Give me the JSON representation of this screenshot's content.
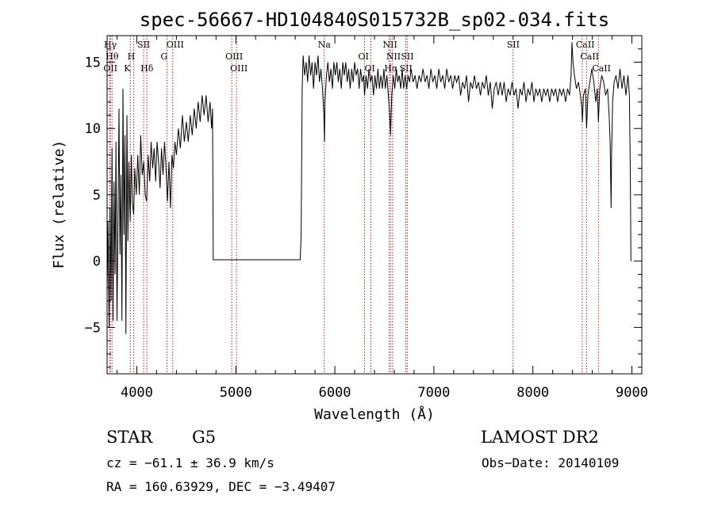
{
  "chart_data": {
    "type": "line",
    "title": "spec-56667-HD104840S015732B_sp02-034.fits",
    "xlabel": "Wavelength (Å)",
    "ylabel": "Flux (relative)",
    "xlim": [
      3700,
      9100
    ],
    "ylim": [
      -8.5,
      17
    ],
    "xticks": [
      4000,
      5000,
      6000,
      7000,
      8000,
      9000
    ],
    "yticks": [
      -5,
      0,
      5,
      10,
      15
    ],
    "grid": false,
    "series": [
      {
        "points": [
          [
            3700,
            -2.5
          ],
          [
            3710,
            3.0
          ],
          [
            3720,
            -5.0
          ],
          [
            3730,
            4.0
          ],
          [
            3740,
            -3.0
          ],
          [
            3750,
            8.5
          ],
          [
            3760,
            -4.5
          ],
          [
            3770,
            6.0
          ],
          [
            3780,
            -1.0
          ],
          [
            3790,
            9.0
          ],
          [
            3800,
            -4.5
          ],
          [
            3810,
            3.0
          ],
          [
            3820,
            11.5
          ],
          [
            3830,
            0.5
          ],
          [
            3840,
            6.5
          ],
          [
            3850,
            -4.5
          ],
          [
            3860,
            13.0
          ],
          [
            3870,
            2.0
          ],
          [
            3880,
            9.5
          ],
          [
            3890,
            -5.5
          ],
          [
            3900,
            11.0
          ],
          [
            3910,
            1.5
          ],
          [
            3920,
            7.5
          ],
          [
            3933,
            3.0
          ],
          [
            3945,
            8.0
          ],
          [
            3955,
            4.5
          ],
          [
            3968,
            3.5
          ],
          [
            3980,
            7.0
          ],
          [
            3995,
            5.0
          ],
          [
            4010,
            8.0
          ],
          [
            4025,
            5.0
          ],
          [
            4040,
            9.5
          ],
          [
            4055,
            6.5
          ],
          [
            4070,
            7.5
          ],
          [
            4085,
            5.0
          ],
          [
            4100,
            4.5
          ],
          [
            4115,
            8.0
          ],
          [
            4130,
            6.0
          ],
          [
            4145,
            9.0
          ],
          [
            4160,
            7.0
          ],
          [
            4175,
            8.5
          ],
          [
            4190,
            6.0
          ],
          [
            4205,
            9.0
          ],
          [
            4220,
            7.5
          ],
          [
            4235,
            5.5
          ],
          [
            4250,
            8.5
          ],
          [
            4265,
            6.5
          ],
          [
            4280,
            9.0
          ],
          [
            4295,
            7.0
          ],
          [
            4310,
            4.5
          ],
          [
            4325,
            7.5
          ],
          [
            4340,
            4.0
          ],
          [
            4355,
            8.0
          ],
          [
            4370,
            7.0
          ],
          [
            4385,
            9.0
          ],
          [
            4400,
            8.0
          ],
          [
            4420,
            10.0
          ],
          [
            4440,
            8.5
          ],
          [
            4460,
            11.0
          ],
          [
            4480,
            9.0
          ],
          [
            4500,
            10.5
          ],
          [
            4520,
            9.0
          ],
          [
            4540,
            11.0
          ],
          [
            4560,
            9.5
          ],
          [
            4580,
            11.5
          ],
          [
            4600,
            10.0
          ],
          [
            4620,
            12.0
          ],
          [
            4640,
            10.5
          ],
          [
            4660,
            12.5
          ],
          [
            4680,
            11.0
          ],
          [
            4700,
            12.5
          ],
          [
            4720,
            10.5
          ],
          [
            4740,
            12.0
          ],
          [
            4755,
            10.0
          ],
          [
            4765,
            11.5
          ],
          [
            4772,
            0.1
          ],
          [
            5650,
            0.1
          ],
          [
            5660,
            2.0
          ],
          [
            5665,
            8.0
          ],
          [
            5670,
            13.0
          ],
          [
            5680,
            15.5
          ],
          [
            5695,
            14.0
          ],
          [
            5710,
            15.0
          ],
          [
            5725,
            13.5
          ],
          [
            5740,
            15.5
          ],
          [
            5755,
            14.0
          ],
          [
            5770,
            15.0
          ],
          [
            5785,
            13.0
          ],
          [
            5800,
            15.0
          ],
          [
            5815,
            14.0
          ],
          [
            5830,
            15.5
          ],
          [
            5845,
            13.5
          ],
          [
            5860,
            14.5
          ],
          [
            5875,
            13.0
          ],
          [
            5890,
            11.0
          ],
          [
            5895,
            9.0
          ],
          [
            5900,
            12.0
          ],
          [
            5915,
            14.0
          ],
          [
            5930,
            15.0
          ],
          [
            5945,
            13.5
          ],
          [
            5960,
            14.5
          ],
          [
            5975,
            13.0
          ],
          [
            5990,
            15.0
          ],
          [
            6005,
            14.0
          ],
          [
            6020,
            15.0
          ],
          [
            6035,
            13.5
          ],
          [
            6050,
            14.5
          ],
          [
            6065,
            13.0
          ],
          [
            6080,
            15.0
          ],
          [
            6095,
            14.0
          ],
          [
            6110,
            15.0
          ],
          [
            6125,
            13.5
          ],
          [
            6140,
            14.5
          ],
          [
            6155,
            13.0
          ],
          [
            6170,
            14.5
          ],
          [
            6185,
            13.5
          ],
          [
            6200,
            15.0
          ],
          [
            6215,
            14.0
          ],
          [
            6230,
            14.5
          ],
          [
            6245,
            13.0
          ],
          [
            6260,
            14.5
          ],
          [
            6275,
            13.5
          ],
          [
            6290,
            14.0
          ],
          [
            6300,
            12.5
          ],
          [
            6315,
            14.0
          ],
          [
            6330,
            13.0
          ],
          [
            6345,
            14.5
          ],
          [
            6360,
            13.5
          ],
          [
            6375,
            14.0
          ],
          [
            6390,
            12.5
          ],
          [
            6405,
            14.0
          ],
          [
            6420,
            13.0
          ],
          [
            6435,
            14.5
          ],
          [
            6450,
            13.0
          ],
          [
            6465,
            14.0
          ],
          [
            6480,
            13.0
          ],
          [
            6495,
            14.5
          ],
          [
            6510,
            13.0
          ],
          [
            6525,
            14.0
          ],
          [
            6540,
            12.5
          ],
          [
            6555,
            11.0
          ],
          [
            6563,
            9.5
          ],
          [
            6575,
            12.5
          ],
          [
            6590,
            14.0
          ],
          [
            6605,
            13.0
          ],
          [
            6620,
            14.5
          ],
          [
            6635,
            13.5
          ],
          [
            6650,
            14.0
          ],
          [
            6665,
            13.0
          ],
          [
            6680,
            14.5
          ],
          [
            6695,
            13.0
          ],
          [
            6710,
            14.0
          ],
          [
            6725,
            13.0
          ],
          [
            6740,
            14.0
          ],
          [
            6755,
            13.5
          ],
          [
            6770,
            14.5
          ],
          [
            6790,
            13.5
          ],
          [
            6810,
            14.0
          ],
          [
            6830,
            13.0
          ],
          [
            6850,
            14.0
          ],
          [
            6870,
            13.5
          ],
          [
            6890,
            14.5
          ],
          [
            6910,
            13.5
          ],
          [
            6930,
            14.0
          ],
          [
            6950,
            13.0
          ],
          [
            6970,
            14.5
          ],
          [
            6990,
            13.5
          ],
          [
            7010,
            14.0
          ],
          [
            7030,
            13.0
          ],
          [
            7050,
            14.5
          ],
          [
            7070,
            13.5
          ],
          [
            7090,
            14.0
          ],
          [
            7110,
            13.0
          ],
          [
            7130,
            14.5
          ],
          [
            7150,
            13.5
          ],
          [
            7170,
            14.0
          ],
          [
            7190,
            13.0
          ],
          [
            7210,
            14.0
          ],
          [
            7230,
            13.5
          ],
          [
            7250,
            14.0
          ],
          [
            7270,
            12.5
          ],
          [
            7290,
            13.5
          ],
          [
            7310,
            13.0
          ],
          [
            7330,
            14.0
          ],
          [
            7350,
            12.0
          ],
          [
            7370,
            13.5
          ],
          [
            7390,
            13.0
          ],
          [
            7410,
            14.0
          ],
          [
            7430,
            13.0
          ],
          [
            7450,
            13.5
          ],
          [
            7470,
            12.5
          ],
          [
            7490,
            13.5
          ],
          [
            7510,
            13.0
          ],
          [
            7530,
            14.0
          ],
          [
            7550,
            12.5
          ],
          [
            7570,
            13.5
          ],
          [
            7590,
            11.5
          ],
          [
            7610,
            13.0
          ],
          [
            7630,
            13.5
          ],
          [
            7650,
            12.5
          ],
          [
            7670,
            13.5
          ],
          [
            7690,
            12.5
          ],
          [
            7710,
            13.5
          ],
          [
            7730,
            12.0
          ],
          [
            7750,
            13.0
          ],
          [
            7770,
            12.5
          ],
          [
            7790,
            13.5
          ],
          [
            7810,
            12.5
          ],
          [
            7830,
            13.0
          ],
          [
            7850,
            11.5
          ],
          [
            7870,
            13.0
          ],
          [
            7890,
            12.5
          ],
          [
            7910,
            13.5
          ],
          [
            7930,
            12.0
          ],
          [
            7950,
            13.0
          ],
          [
            7970,
            12.5
          ],
          [
            7990,
            13.5
          ],
          [
            8010,
            12.0
          ],
          [
            8030,
            13.0
          ],
          [
            8050,
            12.5
          ],
          [
            8070,
            13.0
          ],
          [
            8090,
            12.0
          ],
          [
            8110,
            13.0
          ],
          [
            8130,
            12.5
          ],
          [
            8150,
            13.0
          ],
          [
            8170,
            12.0
          ],
          [
            8190,
            13.0
          ],
          [
            8210,
            12.5
          ],
          [
            8230,
            13.0
          ],
          [
            8250,
            12.0
          ],
          [
            8270,
            13.0
          ],
          [
            8290,
            12.5
          ],
          [
            8310,
            13.0
          ],
          [
            8330,
            12.0
          ],
          [
            8350,
            13.0
          ],
          [
            8370,
            12.5
          ],
          [
            8385,
            14.0
          ],
          [
            8395,
            16.5
          ],
          [
            8405,
            15.0
          ],
          [
            8420,
            14.0
          ],
          [
            8440,
            13.0
          ],
          [
            8460,
            13.5
          ],
          [
            8480,
            12.5
          ],
          [
            8495,
            11.5
          ],
          [
            8500,
            10.5
          ],
          [
            8510,
            12.5
          ],
          [
            8530,
            13.0
          ],
          [
            8542,
            10.0
          ],
          [
            8555,
            12.5
          ],
          [
            8575,
            13.5
          ],
          [
            8595,
            14.5
          ],
          [
            8615,
            13.5
          ],
          [
            8635,
            12.0
          ],
          [
            8650,
            13.0
          ],
          [
            8662,
            10.5
          ],
          [
            8675,
            13.0
          ],
          [
            8695,
            14.0
          ],
          [
            8715,
            13.5
          ],
          [
            8735,
            12.5
          ],
          [
            8755,
            13.0
          ],
          [
            8770,
            11.0
          ],
          [
            8780,
            9.0
          ],
          [
            8790,
            4.0
          ],
          [
            8795,
            8.0
          ],
          [
            8805,
            12.0
          ],
          [
            8820,
            13.5
          ],
          [
            8840,
            14.0
          ],
          [
            8860,
            13.0
          ],
          [
            8880,
            14.5
          ],
          [
            8900,
            13.0
          ],
          [
            8920,
            14.0
          ],
          [
            8940,
            12.5
          ],
          [
            8960,
            14.0
          ],
          [
            8975,
            12.5
          ],
          [
            8985,
            6.0
          ],
          [
            8990,
            0.0
          ]
        ]
      }
    ],
    "lines": [
      {
        "label": "Hγ",
        "x": 3732,
        "ty": 16.1
      },
      {
        "label": "Hθ",
        "x": 3750,
        "ty": 15.2
      },
      {
        "label": "OII",
        "x": 3727,
        "ty": 14.3
      },
      {
        "label": "K",
        "x": 3934,
        "ty": 14.3
      },
      {
        "label": "H",
        "x": 3969,
        "ty": 15.2
      },
      {
        "label": "SII",
        "x": 4069,
        "ty": 16.1
      },
      {
        "label": "Hδ",
        "x": 4102,
        "ty": 14.3
      },
      {
        "label": "OIII",
        "x": 4363,
        "ty": 16.1
      },
      {
        "label": "G",
        "x": 4304,
        "ty": 15.2
      },
      {
        "label": "OIII",
        "x": 4959,
        "ty": 15.2
      },
      {
        "label": "OIII",
        "x": 5007,
        "ty": 14.3
      },
      {
        "label": "Na",
        "x": 5893,
        "ty": 16.1
      },
      {
        "label": "OI",
        "x": 6300,
        "ty": 15.2
      },
      {
        "label": "OI",
        "x": 6364,
        "ty": 14.3
      },
      {
        "label": "NII",
        "x": 6548,
        "ty": 16.1
      },
      {
        "label": "Hα",
        "x": 6563,
        "ty": 14.3
      },
      {
        "label": "NII",
        "x": 6583,
        "ty": 15.2
      },
      {
        "label": "SII",
        "x": 6717,
        "ty": 14.3
      },
      {
        "label": "SII",
        "x": 6731,
        "ty": 15.2
      },
      {
        "label": "SII",
        "x": 7800,
        "ty": 16.1
      },
      {
        "label": "CaII",
        "x": 8498,
        "ty": 16.1
      },
      {
        "label": "CaII",
        "x": 8542,
        "ty": 15.2
      },
      {
        "label": "CaII",
        "x": 8662,
        "ty": 14.3
      }
    ]
  },
  "info": {
    "class": "STAR",
    "subclass": "G5",
    "survey": "LAMOST DR2",
    "cz": "cz = −61.1 ± 36.9 km/s",
    "obs_date": "Obs−Date: 20140109",
    "coords": "RA = 160.63929, DEC =  −3.49407"
  }
}
